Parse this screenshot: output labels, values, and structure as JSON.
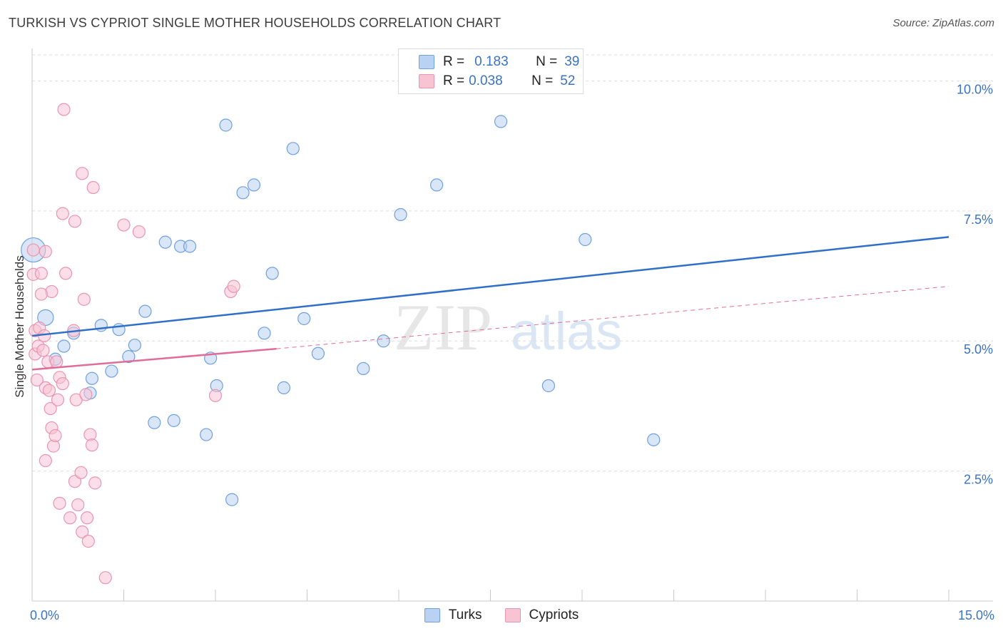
{
  "title": "TURKISH VS CYPRIOT SINGLE MOTHER HOUSEHOLDS CORRELATION CHART",
  "source": "Source: ZipAtlas.com",
  "colors": {
    "blue_fill": "#b9d2f3",
    "blue_edge": "#6fa0df",
    "blue_line": "#2f6fc9",
    "pink_fill": "#f8c3d3",
    "pink_edge": "#e895b0",
    "pink_line": "#e06d98",
    "tick_label": "#3a72c4",
    "grid": "#dedede"
  },
  "legend_top": {
    "rows": [
      {
        "r_label": "R =",
        "r_value": "0.183",
        "n_label": "N =",
        "n_value": "39"
      },
      {
        "r_label": "R =",
        "r_value": "0.038",
        "n_label": "N =",
        "n_value": "52"
      }
    ]
  },
  "legend_bottom": {
    "items": [
      "Turks",
      "Cypriots"
    ]
  },
  "watermark": {
    "part1": "ZIP",
    "part2": "atlas"
  },
  "chart_data": {
    "type": "scatter",
    "title": "TURKISH VS CYPRIOT SINGLE MOTHER HOUSEHOLDS CORRELATION CHART",
    "xlabel": "",
    "ylabel": "Single Mother Households",
    "xlim": [
      0,
      15
    ],
    "ylim": [
      0,
      10.5
    ],
    "x_tick_labels": [
      {
        "value": 0,
        "label": "0.0%"
      },
      {
        "value": 15,
        "label": "15.0%"
      }
    ],
    "y_tick_labels": [
      {
        "value": 2.5,
        "label": "2.5%"
      },
      {
        "value": 5,
        "label": "5.0%"
      },
      {
        "value": 7.5,
        "label": "7.5%"
      },
      {
        "value": 10,
        "label": "10.0%"
      }
    ],
    "series": [
      {
        "name": "Turks",
        "r": 0.183,
        "n": 39,
        "trend": {
          "x": [
            0,
            15
          ],
          "y": [
            5.1,
            7.0
          ]
        },
        "points": [
          [
            0.02,
            6.75,
            2.0
          ],
          [
            0.22,
            5.45,
            1.3
          ],
          [
            0.38,
            4.65,
            1.0
          ],
          [
            0.52,
            4.9,
            1.0
          ],
          [
            0.68,
            5.15,
            1.0
          ],
          [
            0.95,
            4.0,
            1.0
          ],
          [
            0.98,
            4.28,
            1.0
          ],
          [
            1.13,
            5.3,
            1.0
          ],
          [
            1.3,
            4.42,
            1.0
          ],
          [
            1.42,
            5.22,
            1.0
          ],
          [
            1.58,
            4.7,
            1.0
          ],
          [
            1.68,
            4.92,
            1.0
          ],
          [
            1.85,
            5.57,
            1.0
          ],
          [
            2.0,
            3.43,
            1.0
          ],
          [
            2.18,
            6.9,
            1.0
          ],
          [
            2.32,
            3.47,
            1.0
          ],
          [
            2.43,
            6.82,
            1.0
          ],
          [
            2.58,
            6.82,
            1.0
          ],
          [
            2.85,
            3.2,
            1.0
          ],
          [
            2.92,
            4.67,
            1.0
          ],
          [
            3.02,
            4.14,
            1.0
          ],
          [
            3.17,
            9.15,
            1.0
          ],
          [
            3.27,
            1.95,
            1.0
          ],
          [
            3.45,
            7.85,
            1.0
          ],
          [
            3.63,
            8.0,
            1.0
          ],
          [
            3.8,
            5.15,
            1.0
          ],
          [
            3.93,
            6.3,
            1.0
          ],
          [
            4.12,
            4.1,
            1.0
          ],
          [
            4.27,
            8.7,
            1.0
          ],
          [
            4.45,
            5.43,
            1.0
          ],
          [
            4.68,
            4.76,
            1.0
          ],
          [
            5.42,
            4.47,
            1.0
          ],
          [
            5.75,
            5.0,
            1.0
          ],
          [
            6.03,
            7.43,
            1.0
          ],
          [
            6.62,
            8.0,
            1.0
          ],
          [
            7.67,
            9.22,
            1.0
          ],
          [
            8.45,
            4.14,
            1.0
          ],
          [
            9.05,
            6.95,
            1.0
          ],
          [
            10.17,
            3.1,
            1.0
          ]
        ]
      },
      {
        "name": "Cypriots",
        "r": 0.038,
        "n": 52,
        "trend": {
          "x": [
            0,
            4.0
          ],
          "y": [
            4.45,
            4.85
          ]
        },
        "trend_extended": {
          "x": [
            4.0,
            15
          ],
          "y": [
            4.85,
            6.05
          ]
        },
        "points": [
          [
            0.02,
            6.75,
            1.0
          ],
          [
            0.02,
            6.28,
            1.0
          ],
          [
            0.05,
            5.2,
            1.0
          ],
          [
            0.05,
            4.75,
            1.0
          ],
          [
            0.08,
            4.25,
            1.0
          ],
          [
            0.1,
            4.9,
            1.0
          ],
          [
            0.12,
            5.25,
            1.0
          ],
          [
            0.15,
            6.3,
            1.0
          ],
          [
            0.18,
            4.82,
            1.0
          ],
          [
            0.2,
            5.1,
            1.0
          ],
          [
            0.22,
            6.72,
            1.0
          ],
          [
            0.22,
            4.1,
            1.0
          ],
          [
            0.22,
            2.7,
            1.0
          ],
          [
            0.26,
            4.6,
            1.0
          ],
          [
            0.28,
            4.05,
            1.0
          ],
          [
            0.3,
            3.7,
            1.0
          ],
          [
            0.32,
            5.95,
            1.0
          ],
          [
            0.32,
            3.33,
            1.0
          ],
          [
            0.35,
            2.98,
            1.0
          ],
          [
            0.38,
            3.18,
            1.0
          ],
          [
            0.4,
            4.6,
            1.0
          ],
          [
            0.42,
            3.87,
            1.0
          ],
          [
            0.45,
            4.3,
            1.0
          ],
          [
            0.45,
            1.88,
            1.0
          ],
          [
            0.5,
            4.18,
            1.0
          ],
          [
            0.5,
            7.45,
            1.0
          ],
          [
            0.52,
            9.45,
            1.0
          ],
          [
            0.55,
            6.3,
            1.0
          ],
          [
            0.62,
            1.6,
            1.0
          ],
          [
            0.68,
            5.2,
            1.0
          ],
          [
            0.7,
            2.3,
            1.0
          ],
          [
            0.7,
            7.3,
            1.0
          ],
          [
            0.72,
            3.87,
            1.0
          ],
          [
            0.75,
            1.85,
            1.0
          ],
          [
            0.8,
            2.47,
            1.0
          ],
          [
            0.82,
            1.33,
            1.0
          ],
          [
            0.82,
            8.22,
            1.0
          ],
          [
            0.85,
            5.8,
            1.0
          ],
          [
            0.88,
            3.97,
            1.0
          ],
          [
            0.9,
            1.6,
            1.0
          ],
          [
            0.92,
            1.15,
            1.0
          ],
          [
            0.95,
            3.2,
            1.0
          ],
          [
            0.98,
            3.0,
            1.0
          ],
          [
            1.0,
            7.95,
            1.0
          ],
          [
            1.03,
            2.27,
            1.0
          ],
          [
            1.2,
            0.45,
            1.0
          ],
          [
            1.5,
            7.23,
            1.0
          ],
          [
            1.75,
            7.1,
            1.0
          ],
          [
            3.0,
            3.95,
            1.0
          ],
          [
            3.25,
            5.95,
            1.0
          ],
          [
            3.3,
            6.05,
            1.0
          ],
          [
            0.15,
            5.9,
            1.0
          ]
        ]
      }
    ]
  }
}
